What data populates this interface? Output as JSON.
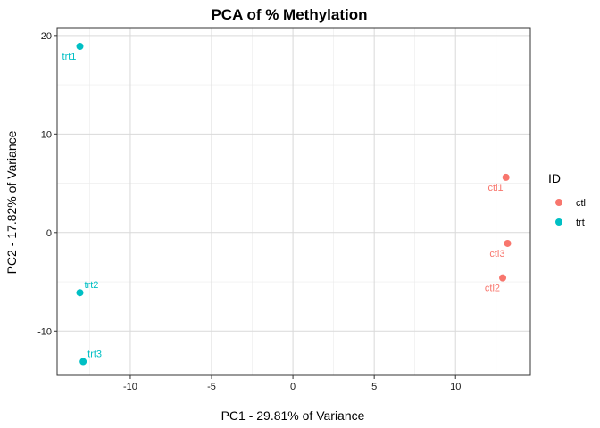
{
  "chart_data": {
    "type": "scatter",
    "title": "PCA of % Methylation",
    "xlabel": "PC1 - 29.81% of Variance",
    "ylabel": "PC2 - 17.82% of Variance",
    "xlim": [
      -14.5,
      14.6
    ],
    "ylim": [
      -14.5,
      20.8
    ],
    "xticks": [
      -10,
      -5,
      0,
      5,
      10
    ],
    "yticks": [
      -10,
      0,
      10,
      20
    ],
    "grid": true,
    "legend": {
      "title": "ID",
      "position": "right"
    },
    "series": [
      {
        "name": "ctl",
        "color": "#F8766D",
        "points": [
          {
            "label": "ctl1",
            "x": 13.1,
            "y": 5.6
          },
          {
            "label": "ctl3",
            "x": 13.2,
            "y": -1.1
          },
          {
            "label": "ctl2",
            "x": 12.9,
            "y": -4.6
          }
        ]
      },
      {
        "name": "trt",
        "color": "#00BFC4",
        "points": [
          {
            "label": "trt1",
            "x": -13.1,
            "y": 18.9
          },
          {
            "label": "trt2",
            "x": -13.1,
            "y": -6.1
          },
          {
            "label": "trt3",
            "x": -12.9,
            "y": -13.1
          }
        ]
      }
    ]
  }
}
